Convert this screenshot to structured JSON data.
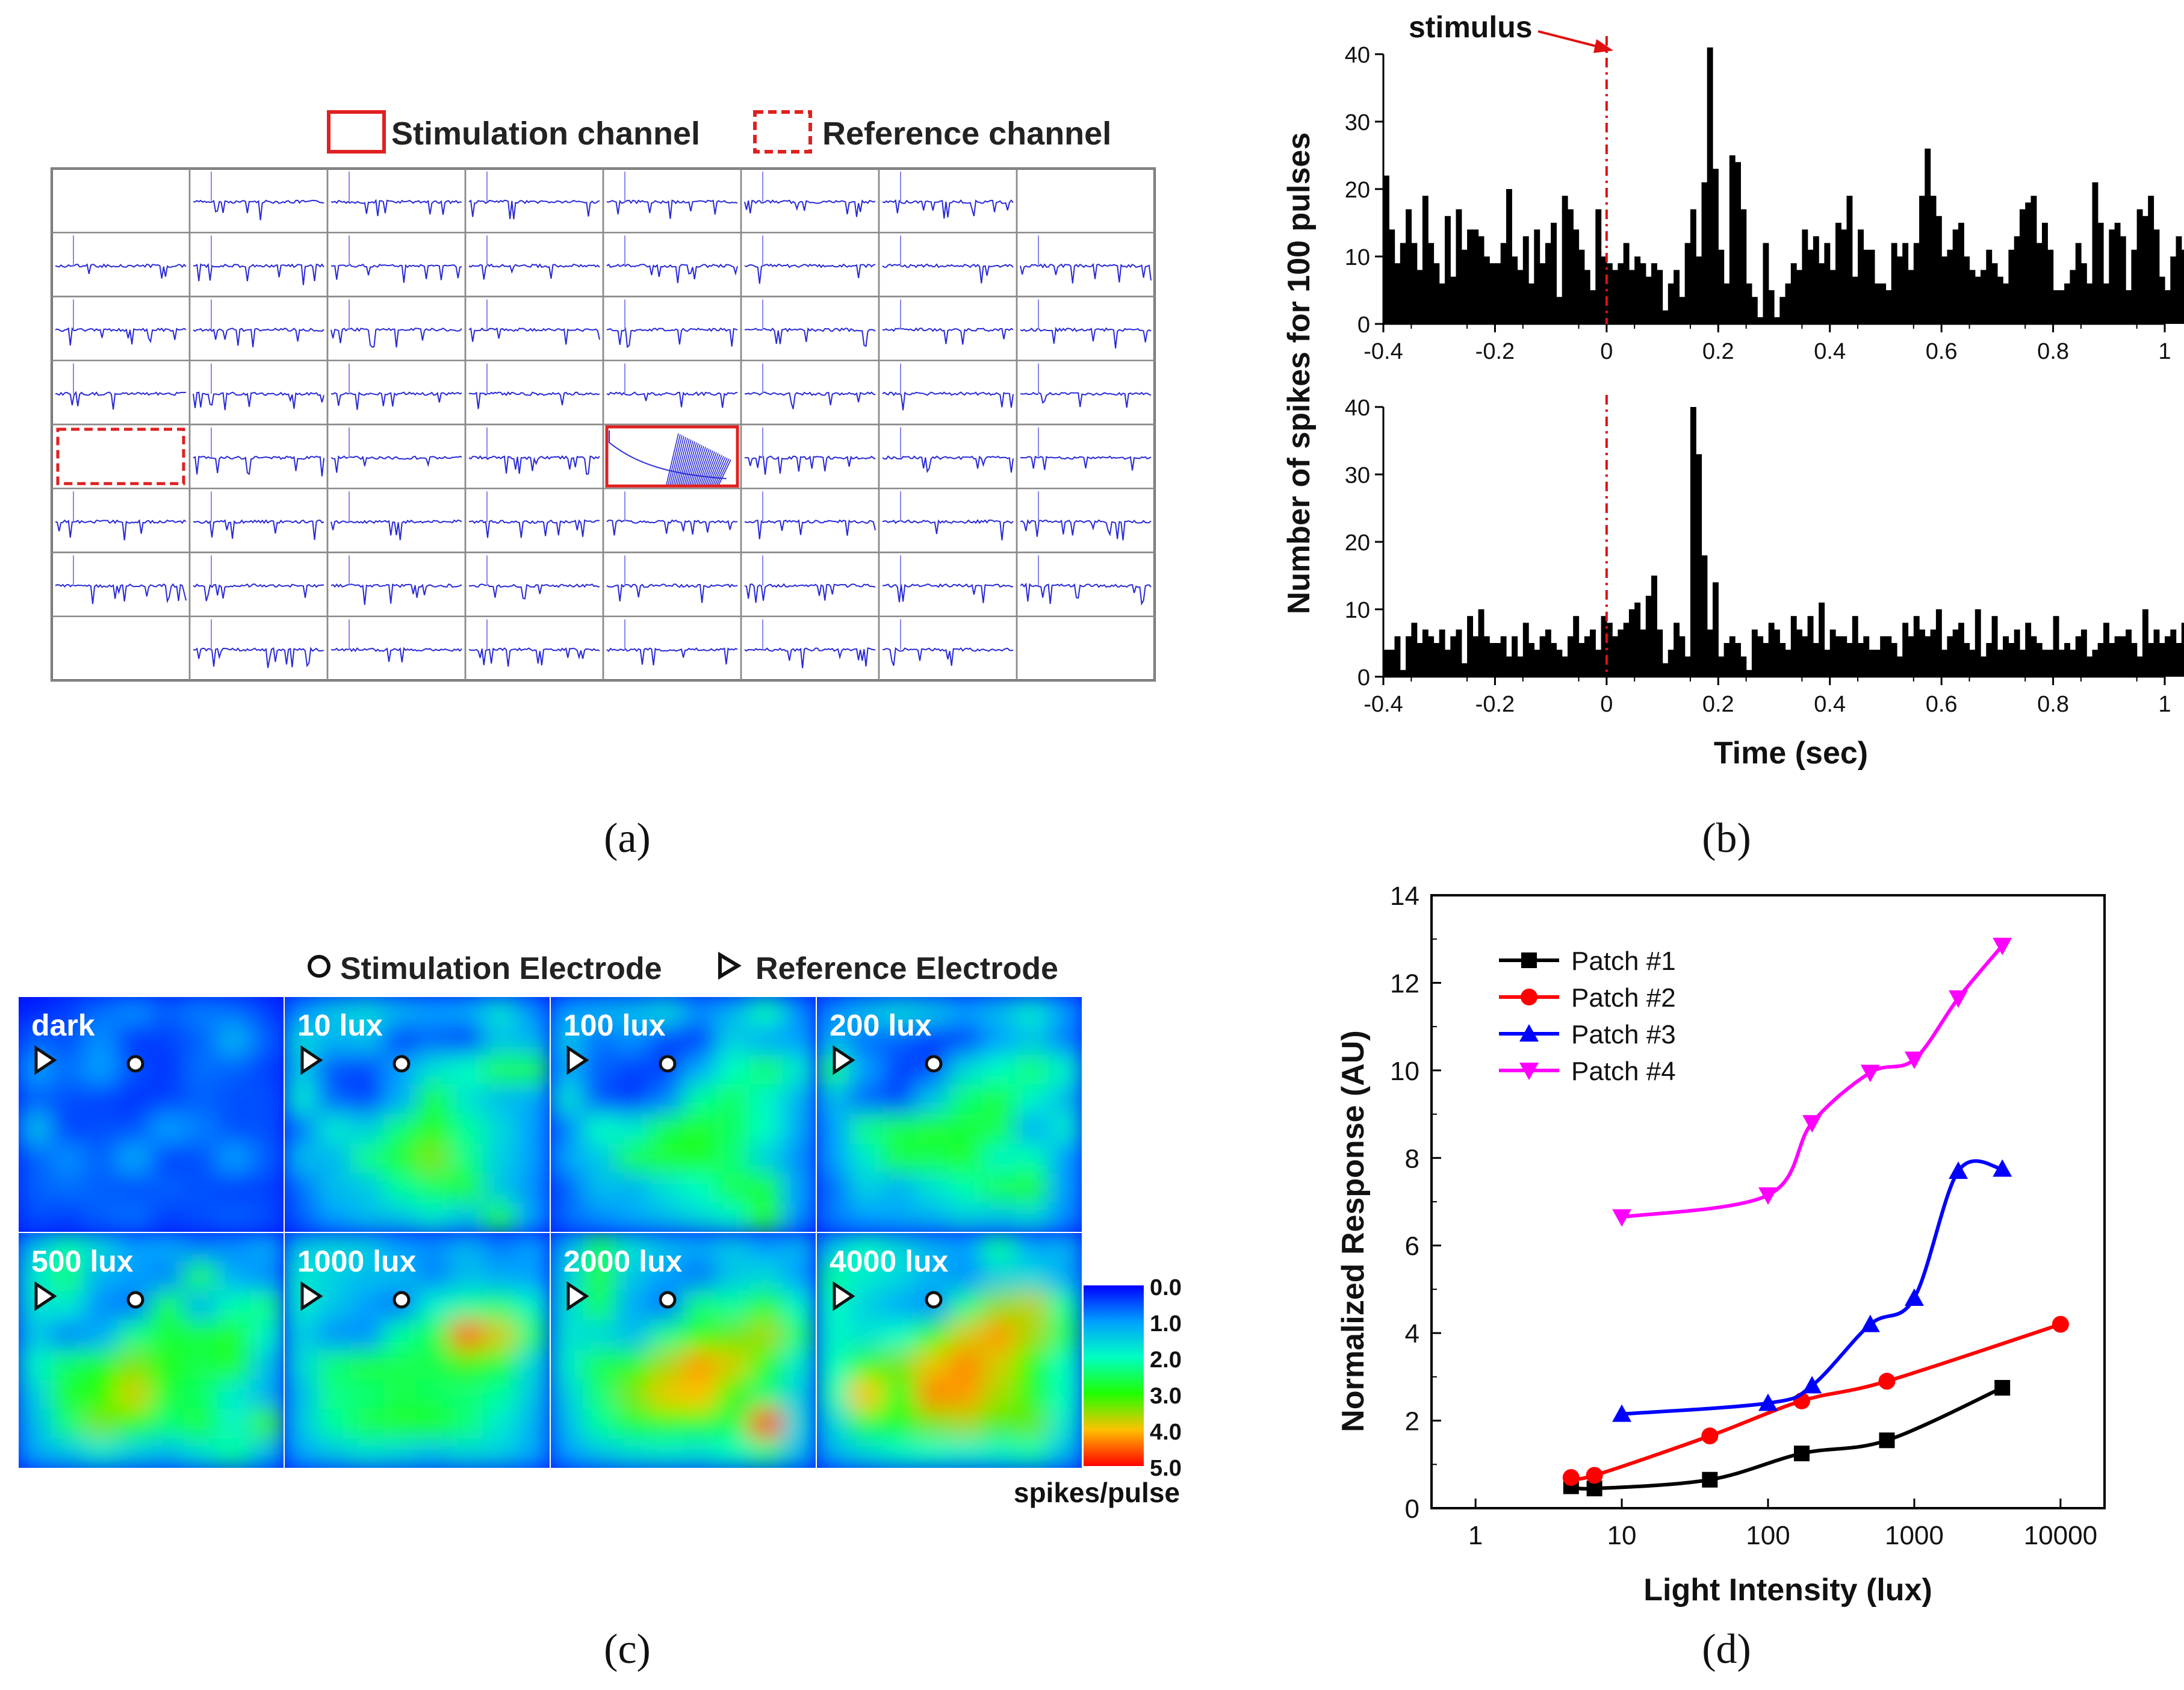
{
  "panels": {
    "a": {
      "caption": "(a)",
      "legend": {
        "stimulation": "Stimulation channel",
        "reference": "Reference channel"
      },
      "grid": {
        "rows": 8,
        "cols": 8
      },
      "reference_cell": [
        4,
        0
      ],
      "stimulation_cell": [
        4,
        4
      ]
    },
    "b": {
      "caption": "(b)",
      "stimulus_label": "stimulus",
      "ylabel": "Number of spikes for 100 pulses",
      "xlabel": "Time (sec)",
      "xticks": [
        "-0.4",
        "-0.2",
        "0",
        "0.2",
        "0.4",
        "0.6",
        "0.8",
        "1"
      ],
      "yticks": [
        "0",
        "10",
        "20",
        "30",
        "40"
      ]
    },
    "c": {
      "caption": "(c)",
      "legend": {
        "stimulation": "Stimulation Electrode",
        "reference": "Reference Electrode"
      },
      "tiles": [
        "dark",
        "10 lux",
        "100 lux",
        "200 lux",
        "500 lux",
        "1000 lux",
        "2000 lux",
        "4000 lux"
      ],
      "colorbar_ticks": [
        "0.0",
        "1.0",
        "2.0",
        "3.0",
        "4.0",
        "5.0"
      ],
      "colorbar_label": "spikes/pulse"
    },
    "d": {
      "caption": "(d)",
      "xlabel": "Light Intensity (lux)",
      "ylabel": "Normalized Response (AU)",
      "xticks": [
        "1",
        "10",
        "100",
        "1000",
        "10000"
      ],
      "yticks": [
        "0",
        "2",
        "4",
        "6",
        "8",
        "10",
        "12",
        "14"
      ]
    }
  },
  "chart_data": [
    {
      "type": "bar",
      "panel": "b-top",
      "xlim": [
        -0.4,
        1.0
      ],
      "ylim": [
        0,
        40
      ],
      "bin_width": 0.01,
      "x_start": -0.4,
      "stimulus_x": 0,
      "values": [
        22,
        14,
        9,
        12,
        17,
        12,
        8,
        19,
        12,
        9,
        6,
        16,
        7,
        17,
        11,
        14,
        14,
        13,
        10,
        9,
        9,
        12,
        20,
        10,
        8,
        13,
        6,
        14,
        9,
        12,
        15,
        4,
        19,
        17,
        14,
        11,
        8,
        5,
        17,
        10,
        9,
        8,
        9,
        12,
        8,
        10,
        9,
        7,
        9,
        8,
        2,
        6,
        8,
        4,
        12,
        17,
        10,
        21,
        41,
        23,
        11,
        6,
        25,
        24,
        17,
        6,
        4,
        1,
        12,
        5,
        1,
        4,
        6,
        9,
        8,
        14,
        11,
        13,
        9,
        12,
        8,
        15,
        14,
        19,
        7,
        14,
        11,
        11,
        6,
        6,
        5,
        12,
        10,
        12,
        8,
        12,
        19,
        26,
        19,
        16,
        10,
        11,
        14,
        15,
        10,
        8,
        7,
        8,
        11,
        9,
        7,
        6,
        11,
        13,
        17,
        18,
        19,
        12,
        15,
        11,
        5,
        5,
        6,
        8,
        12,
        9,
        6,
        21,
        15,
        6,
        14,
        15,
        13,
        5,
        11,
        17,
        16,
        19,
        14,
        7,
        5,
        10,
        13,
        11,
        12,
        6,
        10,
        8,
        4,
        11
      ],
      "ylabel": "Number of spikes for 100 pulses"
    },
    {
      "type": "bar",
      "panel": "b-bottom",
      "xlim": [
        -0.4,
        1.0
      ],
      "ylim": [
        0,
        40
      ],
      "bin_width": 0.01,
      "x_start": -0.4,
      "stimulus_x": 0,
      "values": [
        4,
        4,
        6,
        1,
        6,
        8,
        5,
        7,
        6,
        5,
        7,
        4,
        6,
        7,
        2,
        9,
        6,
        10,
        6,
        5,
        5,
        6,
        3,
        6,
        3,
        8,
        5,
        4,
        6,
        7,
        5,
        4,
        3,
        6,
        9,
        5,
        6,
        7,
        4,
        9,
        8,
        6,
        7,
        8,
        10,
        11,
        7,
        12,
        15,
        7,
        2,
        4,
        8,
        6,
        3,
        40,
        33,
        18,
        7,
        14,
        3,
        5,
        6,
        5,
        3,
        1,
        7,
        6,
        5,
        8,
        7,
        5,
        4,
        9,
        7,
        6,
        9,
        5,
        11,
        4,
        7,
        6,
        6,
        5,
        9,
        5,
        6,
        4,
        4,
        6,
        6,
        5,
        3,
        8,
        6,
        9,
        7,
        6,
        7,
        10,
        4,
        6,
        7,
        8,
        5,
        4,
        10,
        3,
        5,
        9,
        4,
        6,
        5,
        7,
        4,
        8,
        6,
        5,
        4,
        4,
        9,
        4,
        5,
        4,
        6,
        7,
        3,
        4,
        5,
        8,
        5,
        6,
        6,
        7,
        5,
        3,
        10,
        5,
        7,
        5,
        6,
        7,
        5,
        8,
        10,
        8,
        7,
        12,
        9,
        5
      ],
      "xlabel": "Time (sec)"
    },
    {
      "type": "line",
      "panel": "d",
      "xscale": "log",
      "xlim": [
        0.5,
        20000
      ],
      "ylim": [
        0,
        14
      ],
      "xlabel": "Light Intensity (lux)",
      "ylabel": "Normalized Response (AU)",
      "legend_position": "top-left",
      "series": [
        {
          "name": "Patch #1",
          "color": "#000000",
          "marker": "square",
          "x": [
            4.5,
            6.5,
            40,
            170,
            650,
            4000
          ],
          "y": [
            0.5,
            0.45,
            0.65,
            1.25,
            1.55,
            2.75
          ]
        },
        {
          "name": "Patch #2",
          "color": "#ff0000",
          "marker": "circle",
          "x": [
            4.5,
            6.5,
            40,
            170,
            650,
            10000
          ],
          "y": [
            0.7,
            0.75,
            1.65,
            2.45,
            2.9,
            4.2
          ]
        },
        {
          "name": "Patch #3",
          "color": "#0000ff",
          "marker": "triangle-up",
          "x": [
            10,
            100,
            200,
            500,
            1000,
            2000,
            4000
          ],
          "y": [
            2.15,
            2.4,
            2.8,
            4.2,
            4.8,
            7.7,
            7.75
          ]
        },
        {
          "name": "Patch #4",
          "color": "#ff00ff",
          "marker": "triangle-down",
          "x": [
            10,
            100,
            200,
            500,
            1000,
            2000,
            4000
          ],
          "y": [
            6.65,
            7.15,
            8.8,
            9.95,
            10.25,
            11.65,
            12.85
          ]
        }
      ]
    }
  ],
  "heatmap_data": {
    "type": "heatmap",
    "panel": "c",
    "colorbar_range": [
      0,
      5
    ],
    "tiles": [
      [
        [
          0.2,
          0.4,
          0.7,
          0.9,
          0.6,
          0.8,
          0.7,
          0.4
        ],
        [
          0.6,
          0.5,
          0.9,
          0.3,
          0.4,
          0.6,
          1.2,
          0.6
        ],
        [
          1.0,
          0.7,
          1.0,
          0.5,
          0.3,
          0.7,
          0.6,
          0.4
        ],
        [
          0.6,
          0.5,
          0.4,
          0.3,
          0.4,
          0.6,
          0.5,
          0.5
        ],
        [
          1.3,
          0.4,
          0.5,
          0.5,
          1.0,
          0.8,
          0.5,
          0.5
        ],
        [
          0.6,
          0.9,
          0.6,
          1.1,
          0.4,
          0.5,
          1.0,
          0.6
        ],
        [
          0.6,
          0.7,
          0.6,
          0.5,
          0.6,
          0.5,
          0.4,
          0.4
        ],
        [
          0.5,
          0.4,
          0.6,
          0.7,
          0.4,
          0.5,
          0.6,
          0.5
        ]
      ],
      [
        [
          0.9,
          1.4,
          1.6,
          1.2,
          1.0,
          1.1,
          1.7,
          0.9
        ],
        [
          1.6,
          1.2,
          1.3,
          0.4,
          0.6,
          0.3,
          1.4,
          1.2
        ],
        [
          1.4,
          0.5,
          0.4,
          1.0,
          1.7,
          2.0,
          2.6,
          2.7
        ],
        [
          1.8,
          0.6,
          0.4,
          1.1,
          2.7,
          1.7,
          1.3,
          1.1
        ],
        [
          0.7,
          1.8,
          1.5,
          2.4,
          3.0,
          2.2,
          1.6,
          1.0
        ],
        [
          1.3,
          1.2,
          2.3,
          2.8,
          3.4,
          2.3,
          1.5,
          1.0
        ],
        [
          0.7,
          1.3,
          1.4,
          2.2,
          2.5,
          2.8,
          1.4,
          0.9
        ],
        [
          0.6,
          1.0,
          1.3,
          1.4,
          1.8,
          1.4,
          2.7,
          1.0
        ]
      ],
      [
        [
          1.0,
          1.2,
          1.3,
          1.6,
          0.9,
          1.2,
          2.1,
          0.9
        ],
        [
          1.4,
          0.7,
          0.9,
          0.4,
          0.3,
          1.5,
          1.1,
          1.0
        ],
        [
          1.1,
          0.6,
          0.4,
          0.4,
          1.1,
          2.0,
          2.5,
          1.8
        ],
        [
          1.7,
          0.5,
          0.3,
          0.8,
          2.2,
          2.5,
          1.9,
          1.2
        ],
        [
          0.8,
          2.0,
          1.8,
          2.6,
          2.8,
          2.5,
          2.0,
          1.1
        ],
        [
          1.1,
          1.4,
          2.6,
          2.8,
          2.9,
          2.4,
          1.5,
          0.9
        ],
        [
          0.6,
          1.3,
          1.2,
          1.7,
          2.0,
          2.6,
          2.7,
          1.0
        ],
        [
          0.7,
          0.9,
          1.1,
          1.3,
          1.6,
          1.9,
          3.0,
          0.9
        ]
      ],
      [
        [
          0.9,
          1.3,
          1.6,
          1.4,
          1.0,
          1.3,
          1.8,
          1.0
        ],
        [
          1.2,
          0.7,
          0.6,
          0.3,
          0.4,
          1.0,
          1.4,
          0.8
        ],
        [
          2.4,
          1.0,
          0.4,
          0.5,
          1.6,
          2.0,
          2.4,
          1.9
        ],
        [
          1.3,
          0.6,
          0.4,
          1.4,
          2.4,
          2.7,
          1.9,
          1.3
        ],
        [
          1.0,
          2.3,
          2.6,
          2.8,
          2.7,
          2.6,
          1.1,
          1.8
        ],
        [
          1.0,
          1.8,
          2.7,
          2.6,
          2.8,
          1.9,
          2.1,
          1.0
        ],
        [
          0.7,
          1.5,
          1.2,
          1.7,
          2.1,
          2.6,
          2.9,
          1.0
        ],
        [
          0.8,
          1.0,
          1.1,
          1.2,
          1.5,
          1.4,
          1.6,
          0.9
        ]
      ],
      [
        [
          1.4,
          2.1,
          1.6,
          1.0,
          1.1,
          0.8,
          0.9,
          1.1
        ],
        [
          1.8,
          2.4,
          1.2,
          1.0,
          0.8,
          2.6,
          1.1,
          0.9
        ],
        [
          1.7,
          1.8,
          0.9,
          0.7,
          2.6,
          1.2,
          2.1,
          2.3
        ],
        [
          1.4,
          0.8,
          1.1,
          2.3,
          2.7,
          2.7,
          2.8,
          1.9
        ],
        [
          1.9,
          2.5,
          2.9,
          3.4,
          2.9,
          2.6,
          2.8,
          1.4
        ],
        [
          1.5,
          2.8,
          3.0,
          3.8,
          2.7,
          2.5,
          1.8,
          1.2
        ],
        [
          1.3,
          2.4,
          3.4,
          3.0,
          2.4,
          2.7,
          1.9,
          3.1
        ],
        [
          1.1,
          1.4,
          1.8,
          1.5,
          1.3,
          1.7,
          2.2,
          1.3
        ]
      ],
      [
        [
          1.4,
          1.6,
          1.5,
          1.0,
          0.9,
          1.2,
          0.8,
          1.0
        ],
        [
          1.8,
          1.5,
          1.3,
          1.3,
          0.8,
          1.3,
          1.1,
          1.0
        ],
        [
          1.8,
          1.4,
          1.0,
          0.7,
          1.9,
          2.2,
          2.4,
          1.9
        ],
        [
          1.5,
          0.9,
          0.9,
          2.2,
          2.6,
          4.5,
          3.8,
          2.4
        ],
        [
          1.6,
          2.4,
          2.7,
          2.6,
          2.6,
          3.1,
          2.7,
          1.6
        ],
        [
          1.3,
          2.3,
          2.4,
          2.6,
          2.5,
          2.4,
          2.2,
          1.4
        ],
        [
          1.4,
          2.2,
          2.6,
          2.8,
          2.9,
          2.4,
          1.8,
          1.2
        ],
        [
          1.1,
          1.4,
          1.7,
          1.6,
          1.4,
          1.6,
          1.5,
          1.1
        ]
      ],
      [
        [
          1.2,
          2.5,
          1.7,
          1.3,
          1.1,
          1.4,
          1.0,
          1.2
        ],
        [
          1.5,
          2.8,
          1.4,
          1.0,
          0.7,
          1.4,
          1.6,
          1.0
        ],
        [
          1.6,
          2.5,
          1.1,
          0.7,
          2.4,
          2.2,
          2.8,
          1.9
        ],
        [
          1.7,
          1.6,
          1.3,
          2.3,
          3.0,
          3.3,
          3.6,
          2.4
        ],
        [
          1.8,
          2.6,
          2.9,
          3.6,
          4.2,
          3.8,
          2.9,
          1.8
        ],
        [
          1.5,
          2.4,
          3.4,
          3.9,
          4.0,
          3.1,
          2.4,
          1.5
        ],
        [
          1.3,
          2.2,
          2.7,
          3.0,
          2.9,
          2.6,
          4.8,
          1.6
        ],
        [
          1.0,
          1.4,
          1.7,
          1.8,
          1.7,
          2.0,
          2.3,
          1.3
        ]
      ],
      [
        [
          1.4,
          2.0,
          1.6,
          1.2,
          1.0,
          2.2,
          1.1,
          1.2
        ],
        [
          2.2,
          1.8,
          1.6,
          1.2,
          0.9,
          1.5,
          1.6,
          1.1
        ],
        [
          2.0,
          1.5,
          1.1,
          0.9,
          2.3,
          3.5,
          3.7,
          2.2
        ],
        [
          1.9,
          1.7,
          2.0,
          3.0,
          3.8,
          4.2,
          3.6,
          2.5
        ],
        [
          2.0,
          3.0,
          3.4,
          3.9,
          4.3,
          3.8,
          3.0,
          2.0
        ],
        [
          2.1,
          4.0,
          2.8,
          4.3,
          4.2,
          3.6,
          2.9,
          2.0
        ],
        [
          1.6,
          2.7,
          2.9,
          3.4,
          3.6,
          3.2,
          3.3,
          1.8
        ],
        [
          1.2,
          1.6,
          1.9,
          2.0,
          1.9,
          1.9,
          2.1,
          1.3
        ]
      ]
    ]
  }
}
